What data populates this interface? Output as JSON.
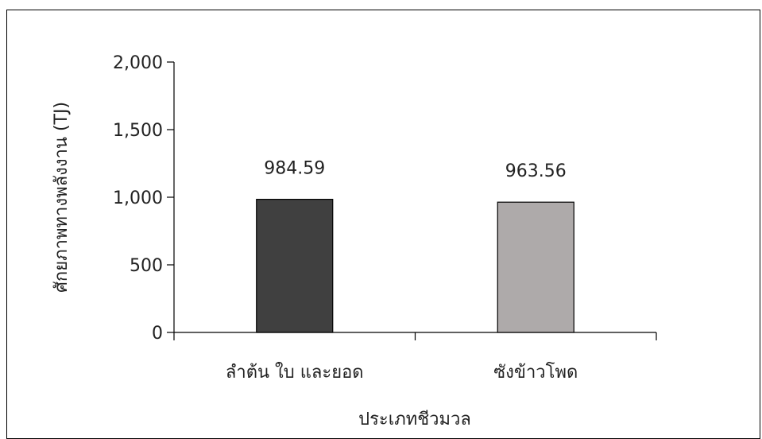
{
  "chart_data": {
    "type": "bar",
    "categories": [
      "ลำต้น ใบ และยอด",
      "ซังข้าวโพด"
    ],
    "values": [
      984.59,
      963.56
    ],
    "data_labels": [
      "984.59",
      "963.56"
    ],
    "colors": [
      "#404040",
      "#aeaaaa"
    ],
    "title": "",
    "xlabel": "ประเภทชีวมวล",
    "ylabel": "ศักยภาพทางพลังงาน (TJ)",
    "ylim": [
      0,
      2000
    ],
    "yticks": [
      0,
      500,
      1000,
      1500,
      2000
    ],
    "ytick_labels": [
      "0",
      "500",
      "1,000",
      "1,500",
      "2,000"
    ],
    "grid": false,
    "legend": "none"
  }
}
